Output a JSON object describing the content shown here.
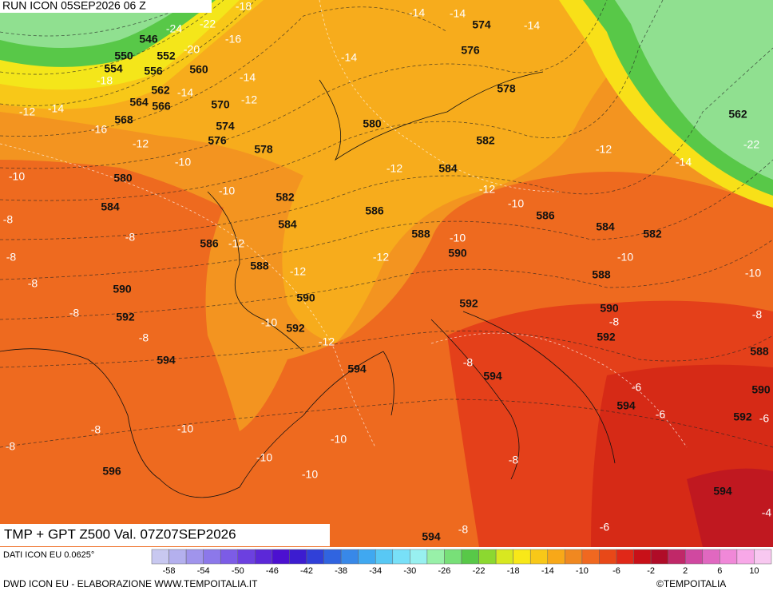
{
  "header": {
    "run": "RUN ICON 05SEP2026 06 Z"
  },
  "map": {
    "title": "TMP + GPT Z500 Val. 07Z07SEP2026",
    "height_labels": [
      546,
      550,
      554,
      556,
      552,
      560,
      562,
      564,
      566,
      568,
      570,
      574,
      576,
      578,
      580,
      584,
      582,
      584,
      586,
      588,
      590,
      592,
      594,
      590,
      592,
      594,
      580,
      576,
      574,
      578,
      582,
      584,
      586,
      588,
      590,
      586,
      584,
      582,
      588,
      590,
      592,
      592,
      594,
      594,
      592,
      590,
      588,
      594,
      596,
      594,
      562
    ],
    "temperature_labels": [
      -18,
      -22,
      -24,
      -16,
      -20,
      -18,
      -14,
      -14,
      -12,
      -12,
      -14,
      -16,
      -12,
      -10,
      -10,
      -10,
      -8,
      -8,
      -12,
      -8,
      -8,
      -12,
      -8,
      -8,
      -10,
      -12,
      -14,
      -14,
      -14,
      -14,
      -12,
      -12,
      -10,
      -10,
      -12,
      -10,
      -10,
      -12,
      -14,
      -22,
      -8,
      -8,
      -8,
      -6,
      -6,
      -6,
      -10,
      -8,
      -8,
      -10,
      -10,
      -10,
      -8,
      -8,
      -6,
      -4
    ]
  },
  "colorbar": {
    "ticks": [
      -58,
      -54,
      -50,
      -46,
      -42,
      -38,
      -34,
      -30,
      -26,
      -22,
      -18,
      -14,
      -10,
      -6,
      -2,
      2,
      6,
      10
    ],
    "range": [
      -60,
      12
    ],
    "colors": [
      "#c8c8f0",
      "#b4b0ee",
      "#a094ec",
      "#8c78ea",
      "#7c5ce6",
      "#6c40e0",
      "#5c28d8",
      "#4c10d0",
      "#3c1cd0",
      "#3040d8",
      "#3064e0",
      "#3888e8",
      "#40a8f0",
      "#58c8f4",
      "#78e0f8",
      "#98f0f0",
      "#98f0a8",
      "#78e078",
      "#58c848",
      "#8cd830",
      "#d8e820",
      "#f8e818",
      "#f8c818",
      "#f8a818",
      "#f08820",
      "#f06820",
      "#e84818",
      "#e02818",
      "#c81018",
      "#b00c28",
      "#c02868",
      "#d048a0",
      "#e068c0",
      "#f088d8",
      "#f8a8e8",
      "#f8c8f0"
    ]
  },
  "footer": {
    "source": "DATI ICON EU 0.0625°",
    "credit": "DWD ICON EU - ELABORAZIONE WWW.TEMPOITALIA.IT",
    "copyright": "©TEMPOITALIA"
  }
}
